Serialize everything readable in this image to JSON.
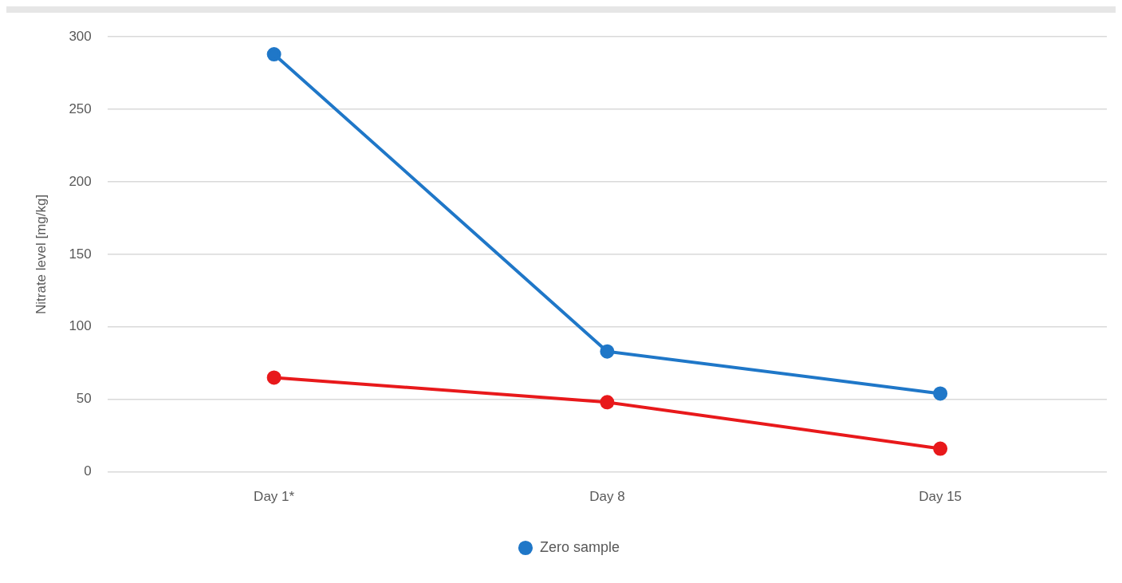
{
  "chart_data": {
    "type": "line",
    "ylabel": "Nitrate level [mg/kg]",
    "categories": [
      "Day 1*",
      "Day 8",
      "Day 15"
    ],
    "series": [
      {
        "name": "Zero sample",
        "color": "#1f77c8",
        "values": [
          288,
          83,
          54
        ]
      },
      {
        "color": "#e8191b",
        "values": [
          65,
          48,
          16
        ]
      }
    ],
    "ylim": [
      0,
      300
    ],
    "yticks": [
      0,
      50,
      100,
      150,
      200,
      250,
      300
    ],
    "grid": "y",
    "legend": "bottom",
    "marker": "circle",
    "line_style": "solid"
  }
}
